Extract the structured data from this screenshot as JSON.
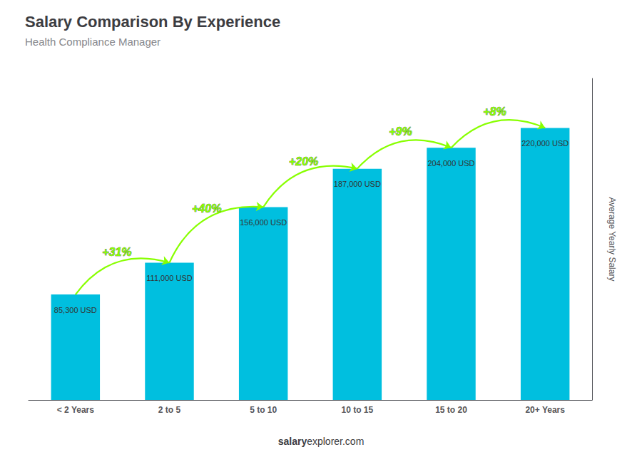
{
  "chart_data": {
    "type": "bar",
    "title": "Salary Comparison By Experience",
    "subtitle": "Health Compliance Manager",
    "categories": [
      "< 2 Years",
      "2 to 5",
      "5 to 10",
      "10 to 15",
      "15 to 20",
      "20+ Years"
    ],
    "values": [
      85300,
      111000,
      156000,
      187000,
      204000,
      220000
    ],
    "value_labels": [
      "85,300 USD",
      "111,000 USD",
      "156,000 USD",
      "187,000 USD",
      "204,000 USD",
      "220,000 USD"
    ],
    "data_labels": true,
    "color": "#00BFDF",
    "ylabel": "Average Yearly Salary",
    "ylim": [
      0,
      260000
    ],
    "grid": false,
    "tick_labels": "x",
    "annotations": [
      {
        "text": "+31%",
        "color": "#88FF00"
      },
      {
        "text": "+40%",
        "color": "#88FF00"
      },
      {
        "text": "+20%",
        "color": "#88FF00"
      },
      {
        "text": "+9%",
        "color": "#88FF00"
      },
      {
        "text": "+8%",
        "color": "#88FF00"
      }
    ],
    "footer": [
      "salary",
      "explorer.com"
    ]
  }
}
